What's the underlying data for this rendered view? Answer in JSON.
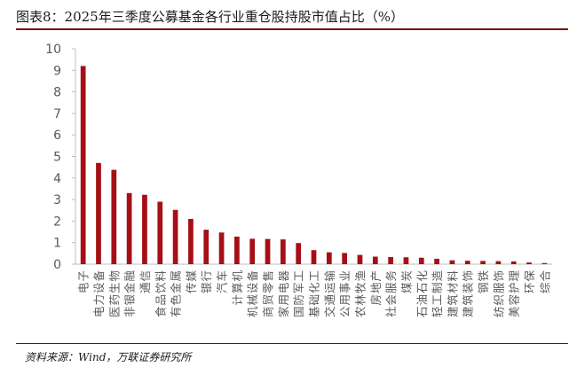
{
  "header": {
    "title": "图表8：2025年三季度公募基金各行业重仓股持股市值占比（%）"
  },
  "footer": {
    "source": "资料来源：Wind，万联证券研究所"
  },
  "colors": {
    "bar": "#A50F15",
    "axis": "#BFBFBF",
    "rule": "#7A0B0B",
    "text": "#595959"
  },
  "chart_data": {
    "type": "bar",
    "title": "",
    "xlabel": "",
    "ylabel": "",
    "ylim": [
      0,
      10
    ],
    "yticks": [
      0,
      1,
      2,
      3,
      4,
      5,
      6,
      7,
      8,
      9,
      10
    ],
    "grid": false,
    "legend": "none",
    "categories": [
      "电子",
      "电力设备",
      "医药生物",
      "非银金融",
      "通信",
      "食品饮料",
      "有色金属",
      "传媒",
      "银行",
      "汽车",
      "计算机",
      "机械设备",
      "商贸零售",
      "家用电器",
      "国防军工",
      "基础化工",
      "交通运输",
      "公用事业",
      "农林牧渔",
      "房地产",
      "社会服务",
      "煤炭",
      "石油石化",
      "轻工制造",
      "建筑材料",
      "建筑装饰",
      "钢铁",
      "纺织服饰",
      "美容护理",
      "环保",
      "综合"
    ],
    "values": [
      9.2,
      4.7,
      4.38,
      3.3,
      3.22,
      2.9,
      2.52,
      2.1,
      1.6,
      1.47,
      1.28,
      1.18,
      1.17,
      1.15,
      0.98,
      0.65,
      0.55,
      0.52,
      0.43,
      0.35,
      0.33,
      0.32,
      0.3,
      0.25,
      0.18,
      0.16,
      0.15,
      0.14,
      0.13,
      0.08,
      0.05
    ]
  }
}
